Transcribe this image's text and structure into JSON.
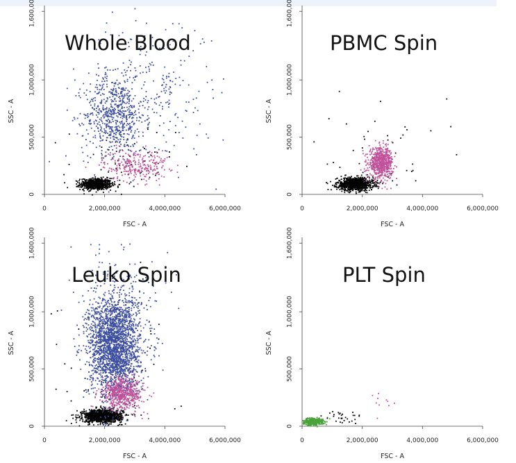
{
  "colors": {
    "granulocytes": "#3c4ea0",
    "monocytes": "#c0519a",
    "lymphocytes": "#000000",
    "platelets": "#4aa23a"
  },
  "chart_data": [
    {
      "type": "scatter",
      "title": "Whole Blood",
      "xlabel": "FSC - A",
      "ylabel": "SSC - A",
      "xlim": [
        0,
        6000000
      ],
      "ylim": [
        0,
        1650000
      ],
      "x_ticks": [
        "0",
        "2,000,000",
        "4,000,000",
        "6,000,000"
      ],
      "y_ticks": [
        "0",
        "500,000",
        "1,000,000",
        "1,600,000"
      ],
      "grid": false,
      "series": [
        {
          "color": "#000000",
          "clusters": [
            {
              "cx": 1700000,
              "cy": 95000,
              "sx": 260000,
              "sy": 25000,
              "n": 650
            },
            {
              "cx": 2500000,
              "cy": 230000,
              "sx": 900000,
              "sy": 200000,
              "n": 60
            }
          ]
        },
        {
          "color": "#3c4ea0",
          "clusters": [
            {
              "cx": 2300000,
              "cy": 700000,
              "sx": 500000,
              "sy": 170000,
              "n": 600
            },
            {
              "cx": 3400000,
              "cy": 900000,
              "sx": 1100000,
              "sy": 330000,
              "n": 300
            }
          ]
        },
        {
          "color": "#c0519a",
          "clusters": [
            {
              "cx": 3000000,
              "cy": 260000,
              "sx": 550000,
              "sy": 70000,
              "n": 260
            }
          ]
        }
      ]
    },
    {
      "type": "scatter",
      "title": "PBMC Spin",
      "xlabel": "FSC - A",
      "ylabel": "SSC - A",
      "xlim": [
        0,
        6000000
      ],
      "ylim": [
        0,
        1650000
      ],
      "x_ticks": [
        "0",
        "2,000,000",
        "4,000,000",
        "6,000,000"
      ],
      "y_ticks": [
        "0",
        "500,000",
        "1,000,000",
        "1,600,000"
      ],
      "grid": false,
      "series": [
        {
          "color": "#000000",
          "clusters": [
            {
              "cx": 1750000,
              "cy": 95000,
              "sx": 300000,
              "sy": 28000,
              "n": 900
            },
            {
              "cx": 2500000,
              "cy": 300000,
              "sx": 1100000,
              "sy": 280000,
              "n": 45
            }
          ]
        },
        {
          "color": "#c0519a",
          "clusters": [
            {
              "cx": 2600000,
              "cy": 280000,
              "sx": 200000,
              "sy": 65000,
              "n": 650
            }
          ]
        }
      ]
    },
    {
      "type": "scatter",
      "title": "Leuko Spin",
      "xlabel": "FSC - A",
      "ylabel": "SSC - A",
      "xlim": [
        0,
        6000000
      ],
      "ylim": [
        0,
        1650000
      ],
      "x_ticks": [
        "0",
        "2,000,000",
        "4,000,000",
        "6,000,000"
      ],
      "y_ticks": [
        "0",
        "500,000",
        "1,000,000",
        "1,600,000"
      ],
      "grid": false,
      "series": [
        {
          "color": "#000000",
          "clusters": [
            {
              "cx": 1900000,
              "cy": 95000,
              "sx": 330000,
              "sy": 28000,
              "n": 1100
            },
            {
              "cx": 2400000,
              "cy": 500000,
              "sx": 1000000,
              "sy": 450000,
              "n": 80
            }
          ]
        },
        {
          "color": "#3c4ea0",
          "clusters": [
            {
              "cx": 2300000,
              "cy": 700000,
              "sx": 420000,
              "sy": 220000,
              "n": 2200
            },
            {
              "cx": 2500000,
              "cy": 1000000,
              "sx": 600000,
              "sy": 300000,
              "n": 300
            }
          ]
        },
        {
          "color": "#c0519a",
          "clusters": [
            {
              "cx": 2600000,
              "cy": 290000,
              "sx": 330000,
              "sy": 70000,
              "n": 550
            }
          ]
        }
      ]
    },
    {
      "type": "scatter",
      "title": "PLT Spin",
      "xlabel": "FSC - A",
      "ylabel": "SSC - A",
      "xlim": [
        0,
        6000000
      ],
      "ylim": [
        0,
        1650000
      ],
      "x_ticks": [
        "0",
        "2,000,000",
        "4,000,000",
        "6,000,000"
      ],
      "y_ticks": [
        "0",
        "500,000",
        "1,000,000",
        "1,600,000"
      ],
      "grid": false,
      "series": [
        {
          "color": "#4aa23a",
          "clusters": [
            {
              "cx": 350000,
              "cy": 45000,
              "sx": 170000,
              "sy": 15000,
              "n": 420
            }
          ]
        },
        {
          "color": "#000000",
          "clusters": [
            {
              "cx": 1300000,
              "cy": 70000,
              "sx": 400000,
              "sy": 30000,
              "n": 30
            }
          ]
        },
        {
          "color": "#c0519a",
          "clusters": [
            {
              "cx": 2600000,
              "cy": 200000,
              "sx": 250000,
              "sy": 60000,
              "n": 10
            }
          ]
        }
      ]
    }
  ]
}
